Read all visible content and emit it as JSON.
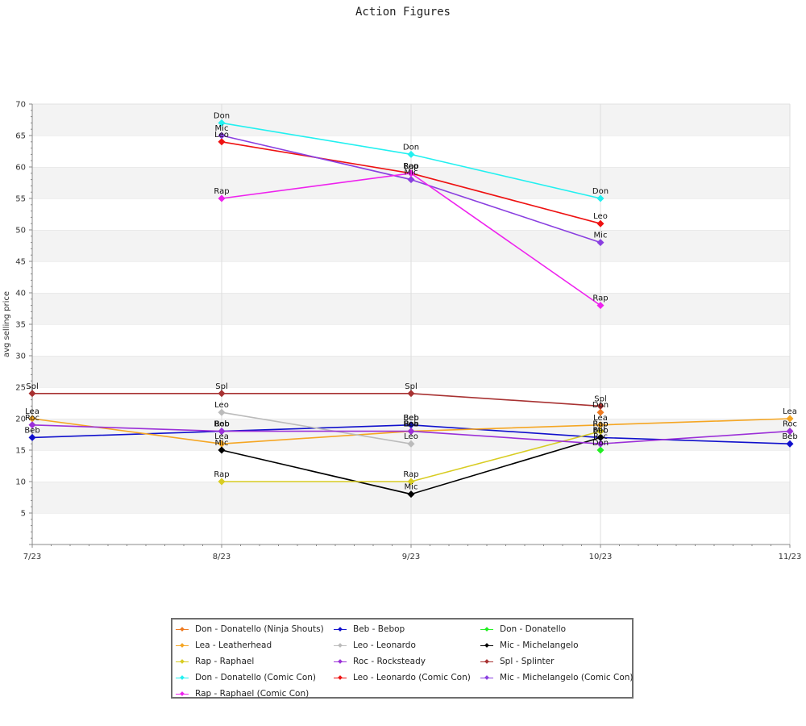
{
  "chart_data": {
    "type": "line",
    "title": "Action Figures",
    "ylabel": "avg selling price",
    "xlabel": "",
    "x_ticks": [
      "7/23",
      "8/23",
      "9/23",
      "10/23",
      "11/23"
    ],
    "ylim": [
      0,
      70
    ],
    "y_ticks": [
      5,
      10,
      15,
      20,
      25,
      30,
      35,
      40,
      45,
      50,
      55,
      60,
      65,
      70
    ],
    "grid": "horizontal bands + vertical lines",
    "legend_position": "bottom",
    "series": [
      {
        "name": "Don - Donatello (Ninja Shouts)",
        "label": "Don",
        "color": "#ee7a21",
        "points": [
          {
            "x": 3,
            "y": 21
          }
        ]
      },
      {
        "name": "Beb - Bebop",
        "label": "Beb",
        "color": "#1010cc",
        "points": [
          {
            "x": 0,
            "y": 17
          },
          {
            "x": 1,
            "y": 18
          },
          {
            "x": 2,
            "y": 19
          },
          {
            "x": 3,
            "y": 17
          },
          {
            "x": 4,
            "y": 16
          }
        ]
      },
      {
        "name": "Don - Donatello",
        "label": "Don",
        "color": "#22ee22",
        "points": [
          {
            "x": 3,
            "y": 15
          }
        ]
      },
      {
        "name": "Lea - Leatherhead",
        "label": "Lea",
        "color": "#f5a623",
        "points": [
          {
            "x": 0,
            "y": 20
          },
          {
            "x": 1,
            "y": 16
          },
          {
            "x": 2,
            "y": 18
          },
          {
            "x": 3,
            "y": 19
          },
          {
            "x": 4,
            "y": 20
          }
        ]
      },
      {
        "name": "Leo - Leonardo",
        "label": "Leo",
        "color": "#bbbbbb",
        "points": [
          {
            "x": 1,
            "y": 21
          },
          {
            "x": 2,
            "y": 16
          }
        ]
      },
      {
        "name": "Mic - Michelangelo",
        "label": "Mic",
        "color": "#000000",
        "points": [
          {
            "x": 1,
            "y": 15
          },
          {
            "x": 2,
            "y": 8
          },
          {
            "x": 3,
            "y": 17
          }
        ]
      },
      {
        "name": "Rap - Raphael",
        "label": "Rap",
        "color": "#d8cc22",
        "points": [
          {
            "x": 1,
            "y": 10
          },
          {
            "x": 2,
            "y": 10
          },
          {
            "x": 3,
            "y": 18
          }
        ]
      },
      {
        "name": "Roc - Rocksteady",
        "label": "Roc",
        "color": "#9b30d8",
        "points": [
          {
            "x": 0,
            "y": 19
          },
          {
            "x": 1,
            "y": 18
          },
          {
            "x": 2,
            "y": 18
          },
          {
            "x": 3,
            "y": 16
          },
          {
            "x": 4,
            "y": 18
          }
        ]
      },
      {
        "name": "Spl - Splinter",
        "label": "Spl",
        "color": "#a83232",
        "points": [
          {
            "x": 0,
            "y": 24
          },
          {
            "x": 1,
            "y": 24
          },
          {
            "x": 2,
            "y": 24
          },
          {
            "x": 3,
            "y": 22
          }
        ]
      },
      {
        "name": "Don - Donatello (Comic Con)",
        "label": "Don",
        "color": "#22f0f0",
        "points": [
          {
            "x": 1,
            "y": 67
          },
          {
            "x": 2,
            "y": 62
          },
          {
            "x": 3,
            "y": 55
          }
        ]
      },
      {
        "name": "Leo - Leonardo (Comic Con)",
        "label": "Leo",
        "color": "#ee1111",
        "points": [
          {
            "x": 1,
            "y": 64
          },
          {
            "x": 2,
            "y": 59
          },
          {
            "x": 3,
            "y": 51
          }
        ]
      },
      {
        "name": "Mic - Michelangelo (Comic Con)",
        "label": "Mic",
        "color": "#8a3fe0",
        "points": [
          {
            "x": 1,
            "y": 65
          },
          {
            "x": 2,
            "y": 58
          },
          {
            "x": 3,
            "y": 48
          }
        ]
      },
      {
        "name": "Rap - Raphael (Comic Con)",
        "label": "Rap",
        "color": "#ee22ee",
        "points": [
          {
            "x": 1,
            "y": 55
          },
          {
            "x": 2,
            "y": 59
          },
          {
            "x": 3,
            "y": 38
          }
        ]
      }
    ],
    "extra_labels": [
      {
        "text": "Beb",
        "x": 1,
        "y": 18
      },
      {
        "text": "Beb",
        "x": 2,
        "y": 18
      },
      {
        "text": "Rap",
        "x": 3,
        "y": 18
      },
      {
        "text": "Rap",
        "x": 2,
        "y": 59
      },
      {
        "text": "Beb",
        "x": 2,
        "y": 19
      }
    ],
    "legend": [
      {
        "text": "Don - Donatello (Ninja Shouts)",
        "color": "#ee7a21"
      },
      {
        "text": "Beb - Bebop",
        "color": "#1010cc"
      },
      {
        "text": "Don - Donatello",
        "color": "#22ee22"
      },
      {
        "text": "Lea - Leatherhead",
        "color": "#f5a623"
      },
      {
        "text": "Leo - Leonardo",
        "color": "#bbbbbb"
      },
      {
        "text": "Mic - Michelangelo",
        "color": "#000000"
      },
      {
        "text": "Rap - Raphael",
        "color": "#d8cc22"
      },
      {
        "text": "Roc - Rocksteady",
        "color": "#9b30d8"
      },
      {
        "text": "Spl - Splinter",
        "color": "#a83232"
      },
      {
        "text": "Don - Donatello (Comic Con)",
        "color": "#22f0f0"
      },
      {
        "text": "Leo - Leonardo (Comic Con)",
        "color": "#ee1111"
      },
      {
        "text": "Mic - Michelangelo (Comic Con)",
        "color": "#8a3fe0"
      },
      {
        "text": "Rap - Raphael (Comic Con)",
        "color": "#ee22ee"
      }
    ]
  }
}
